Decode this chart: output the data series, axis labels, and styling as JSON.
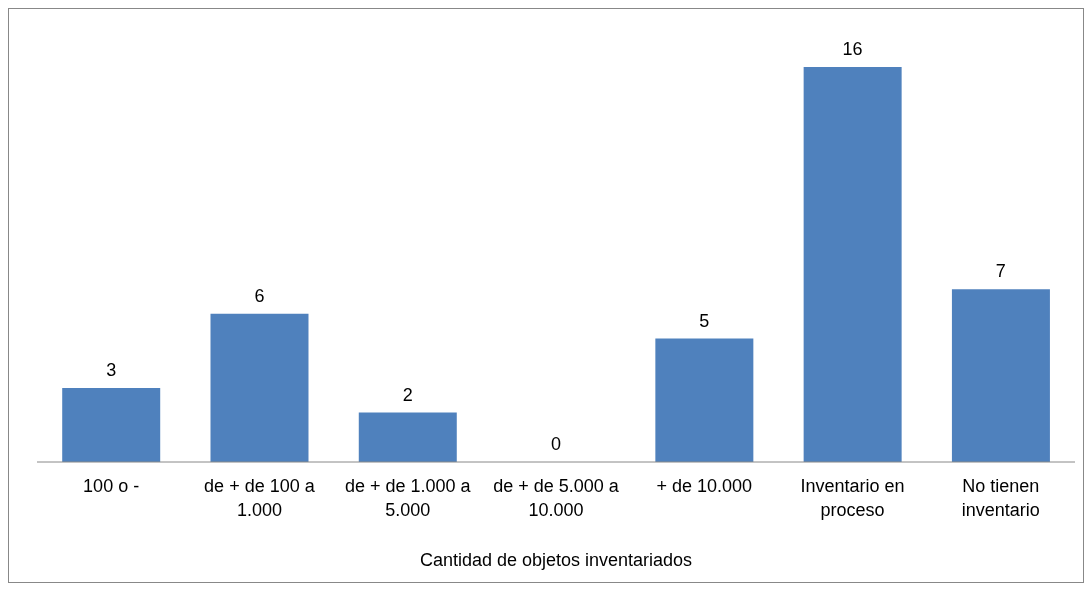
{
  "chart_data": {
    "type": "bar",
    "xlabel": "Cantidad de objetos inventariados",
    "categories": [
      "100 o -",
      "de + de 100 a 1.000",
      "de + de 1.000 a 5.000",
      "de + de 5.000 a 10.000",
      "+ de 10.000",
      "Inventario en proceso",
      "No tienen inventario"
    ],
    "values": [
      3,
      6,
      2,
      0,
      5,
      16,
      7
    ],
    "color": "#4f81bd",
    "data_labels": true,
    "grid": false,
    "legend": false
  }
}
